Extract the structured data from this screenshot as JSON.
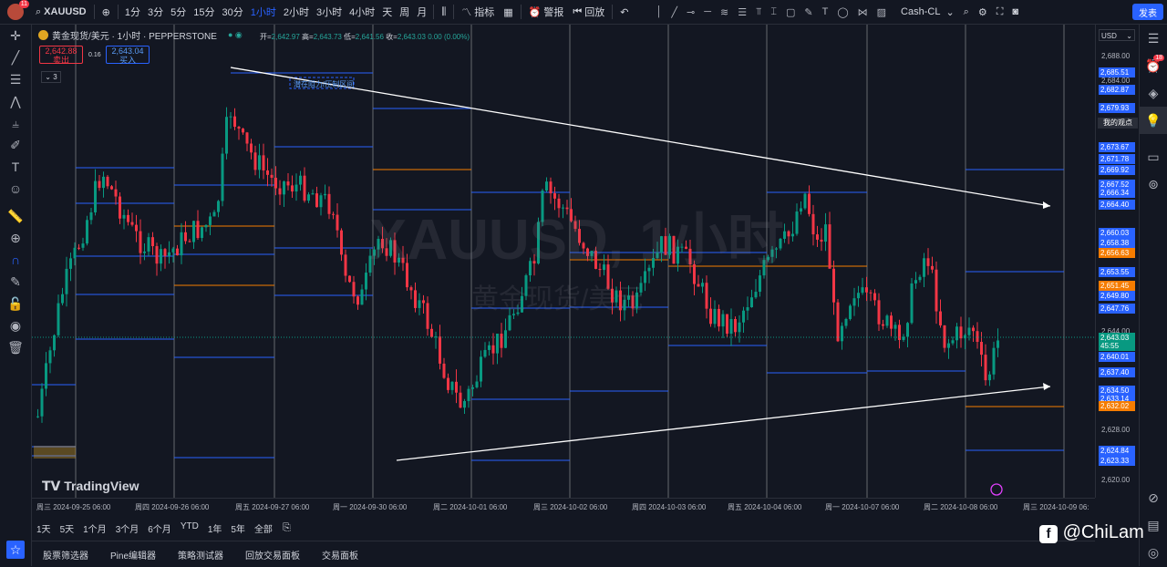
{
  "toolbar": {
    "notification_count": "11",
    "symbol": "XAUUSD",
    "intervals": [
      "1分",
      "3分",
      "5分",
      "15分",
      "30分",
      "1小时",
      "2小时",
      "3小时",
      "4小时",
      "天",
      "周",
      "月"
    ],
    "active_interval": "1小时",
    "indicators_label": "指标",
    "alert_label": "警报",
    "replay_label": "回放",
    "layout_name": "Cash-CL",
    "publish_label": "发表"
  },
  "legend": {
    "title": "黄金现货/美元 · 1小时 · PEPPERSTONE",
    "open_label": "开=",
    "open": "2,642.97",
    "high_label": "高=",
    "high": "2,643.73",
    "low_label": "低=",
    "low": "2,641.56",
    "close_label": "收=",
    "close": "2,643.03",
    "change": "0.00 (0.00%)",
    "sell_price": "2,642.88",
    "sell_label": "卖出",
    "spread": "0.16",
    "buy_price": "2,643.04",
    "buy_label": "买入",
    "collapse_count": "3"
  },
  "watermark": {
    "line1": "XAUUSD, 1小时",
    "line2": "黄金现货/美元"
  },
  "annotation": {
    "zone_label": "潜在阻力/压制区间"
  },
  "price_axis": {
    "currency": "USD",
    "ticks": [
      "2,688.00",
      "2,684.00",
      "2,644.00",
      "2,628.00",
      "2,620.00"
    ],
    "tags": [
      {
        "text": "2,685.51",
        "color": "#2962ff"
      },
      {
        "text": "2,682.87",
        "color": "#2962ff"
      },
      {
        "text": "2,679.93",
        "color": "#2962ff"
      },
      {
        "text": "2,673.67",
        "color": "#2962ff"
      },
      {
        "text": "2,671.78",
        "color": "#2962ff"
      },
      {
        "text": "2,669.92",
        "color": "#2962ff"
      },
      {
        "text": "2,667.52",
        "color": "#2962ff"
      },
      {
        "text": "2,666.34",
        "color": "#2962ff"
      },
      {
        "text": "2,664.40",
        "color": "#2962ff"
      },
      {
        "text": "2,660.03",
        "color": "#2962ff"
      },
      {
        "text": "2,658.38",
        "color": "#2962ff"
      },
      {
        "text": "2,656.63",
        "color": "#f57c00"
      },
      {
        "text": "2,653.55",
        "color": "#2962ff"
      },
      {
        "text": "2,651.45",
        "color": "#f57c00"
      },
      {
        "text": "2,649.80",
        "color": "#2962ff"
      },
      {
        "text": "2,647.76",
        "color": "#2962ff"
      },
      {
        "text": "2,643.03",
        "color": "#089981"
      },
      {
        "text": "45:55",
        "color": "#089981"
      },
      {
        "text": "2,640.01",
        "color": "#2962ff"
      },
      {
        "text": "2,637.40",
        "color": "#2962ff"
      },
      {
        "text": "2,634.50",
        "color": "#2962ff"
      },
      {
        "text": "2,633.14",
        "color": "#2962ff"
      },
      {
        "text": "2,632.02",
        "color": "#f57c00"
      },
      {
        "text": "2,624.84",
        "color": "#2962ff"
      },
      {
        "text": "2,623.33",
        "color": "#2962ff"
      }
    ],
    "view_label": "我的观点"
  },
  "time_axis": [
    "周三 2024-09-25   06:00",
    "周四 2024-09-26   06:00",
    "周五 2024-09-27   06:00",
    "周一 2024-09-30   06:00",
    "周二 2024-10-01   06:00",
    "周三 2024-10-02   06:00",
    "周四 2024-10-03   06:00",
    "周五 2024-10-04   06:00",
    "周一 2024-10-07   06:00",
    "周二 2024-10-08   06:00",
    "周三 2024-10-09   06:"
  ],
  "ranges": [
    "1天",
    "5天",
    "1个月",
    "3个月",
    "6个月",
    "YTD",
    "1年",
    "5年",
    "全部"
  ],
  "bottom_tabs": [
    "股票筛选器",
    "Pine编辑器",
    "策略测试器",
    "回放交易面板",
    "交易面板"
  ],
  "branding": {
    "logo": "TradingView",
    "credit": "@ChiLam"
  },
  "colors": {
    "background": "#131722",
    "up": "#089981",
    "down": "#f23645",
    "accent": "#2962ff",
    "level_orange": "#f57c00"
  }
}
